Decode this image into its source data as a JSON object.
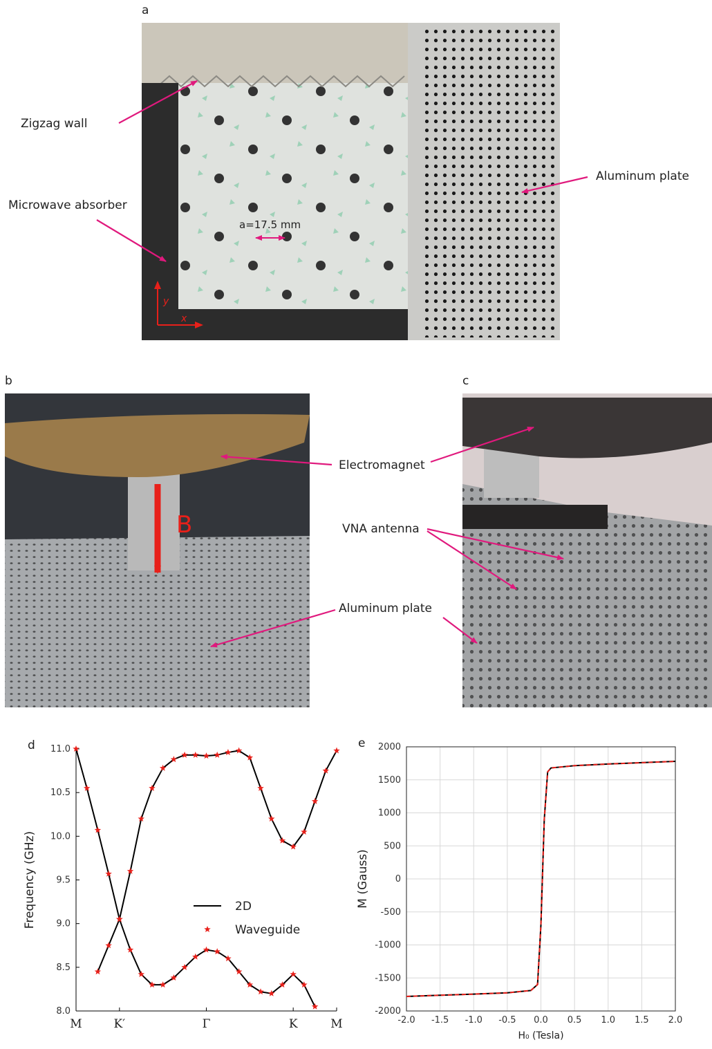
{
  "panels": {
    "a": {
      "label": "a",
      "annotations": [
        "Zigzag wall",
        "Microwave absorber",
        "Aluminum plate",
        "a=17.5 mm",
        "y",
        "x"
      ]
    },
    "b": {
      "label": "b",
      "annotations": [
        "B"
      ]
    },
    "c": {
      "label": "c"
    },
    "shared_annotations": [
      "Electromagnet",
      "VNA antenna",
      "Aluminum plate"
    ]
  },
  "chart_data": [
    {
      "type": "line",
      "panel_label": "d",
      "ylabel": "Frequency (GHz)",
      "x": [
        0,
        0.25,
        0.5,
        0.75,
        1,
        1.25,
        1.5,
        1.75,
        2,
        2.25,
        2.5,
        2.75,
        3,
        3.25,
        3.5,
        3.75,
        4,
        4.25,
        4.5,
        4.75,
        5,
        5.25,
        5.5,
        5.75,
        6
      ],
      "xlim": [
        0,
        6
      ],
      "xticks": [
        {
          "value": 0,
          "label": "M"
        },
        {
          "value": 1,
          "label": "K′"
        },
        {
          "value": 3,
          "label": "Γ"
        },
        {
          "value": 5,
          "label": "K"
        },
        {
          "value": 6,
          "label": "M"
        }
      ],
      "ylim": [
        8,
        11
      ],
      "yticks": [
        {
          "value": 8,
          "label": "8.0"
        },
        8.5,
        {
          "value": 9,
          "label": "9.0"
        },
        9.5,
        {
          "value": 10,
          "label": "10.0"
        },
        10.5,
        {
          "value": 11,
          "label": "11.0"
        }
      ],
      "grid": false,
      "legend": "center",
      "series": [
        {
          "name": "2D",
          "marker": "line",
          "color": "#000000",
          "bands": [
            {
              "values": [
                11.0,
                10.55,
                10.07,
                9.57,
                9.05,
                8.7,
                8.42,
                8.3,
                8.3,
                8.38,
                8.5,
                8.62,
                8.7,
                8.68,
                8.6,
                8.45,
                8.3,
                8.22,
                8.2,
                8.3,
                8.42,
                8.3,
                8.05,
                null,
                null
              ]
            },
            {
              "values": [
                null,
                null,
                8.45,
                8.75,
                9.05,
                9.6,
                10.2,
                10.55,
                10.78,
                10.88,
                10.93,
                10.93,
                10.92,
                10.93,
                10.96,
                10.98,
                10.9,
                10.55,
                10.2,
                9.95,
                9.88,
                10.05,
                10.4,
                10.75,
                10.98
              ]
            }
          ]
        },
        {
          "name": "Waveguide",
          "marker": "star",
          "color": "#e8201a",
          "bands": [
            {
              "values": [
                11.0,
                10.55,
                10.07,
                9.57,
                9.05,
                8.7,
                8.42,
                8.3,
                8.3,
                8.38,
                8.5,
                8.62,
                8.7,
                8.68,
                8.6,
                8.45,
                8.3,
                8.22,
                8.2,
                8.3,
                8.42,
                8.3,
                8.05,
                null,
                null
              ]
            },
            {
              "values": [
                null,
                null,
                8.45,
                8.75,
                9.05,
                9.6,
                10.2,
                10.55,
                10.78,
                10.88,
                10.93,
                10.93,
                10.92,
                10.93,
                10.96,
                10.98,
                10.9,
                10.55,
                10.2,
                9.95,
                9.88,
                10.05,
                10.4,
                10.75,
                10.98
              ]
            }
          ]
        }
      ]
    },
    {
      "type": "line",
      "panel_label": "e",
      "xlabel": "H₀ (Tesla)",
      "ylabel": "M (Gauss)",
      "x": [
        -2,
        -1.5,
        -1,
        -0.5,
        -0.15,
        -0.05,
        0,
        0.05,
        0.1,
        0.15,
        0.5,
        1,
        1.5,
        2
      ],
      "xlim": [
        -2,
        2
      ],
      "xticks": [
        {
          "value": -2,
          "label": "-2.0"
        },
        {
          "value": -1.5,
          "label": "-1.5"
        },
        {
          "value": -1,
          "label": "-1.0"
        },
        {
          "value": -0.5,
          "label": "-0.5"
        },
        {
          "value": 0,
          "label": "0.0"
        },
        {
          "value": 0.5,
          "label": "0.5"
        },
        {
          "value": 1,
          "label": "1.0"
        },
        {
          "value": 1.5,
          "label": "1.5"
        },
        {
          "value": 2,
          "label": "2.0"
        }
      ],
      "ylim": [
        -2000,
        2000
      ],
      "yticks": [
        -2000,
        -1500,
        -1000,
        -500,
        0,
        500,
        1000,
        1500,
        2000
      ],
      "grid": true,
      "series": [
        {
          "color": "#000000",
          "dash_color": "#e8201a",
          "bands": [
            {
              "values": [
                -1780,
                -1762,
                -1745,
                -1725,
                -1690,
                -1600,
                -700,
                900,
                1620,
                1680,
                1715,
                1740,
                1760,
                1780
              ]
            }
          ]
        }
      ]
    }
  ]
}
